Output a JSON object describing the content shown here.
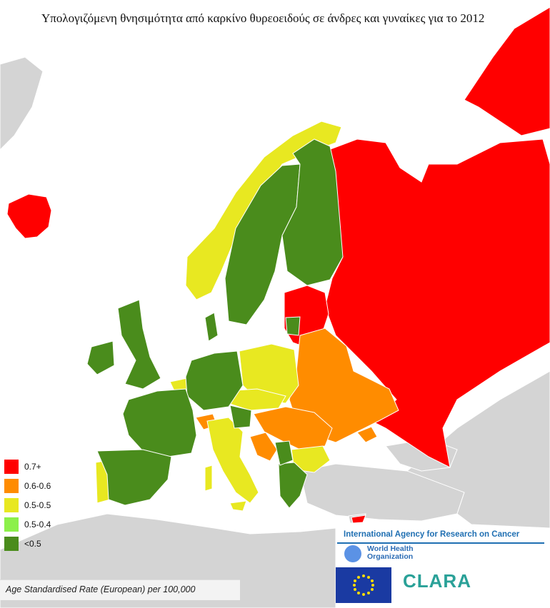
{
  "title": "Υπολογιζόμενη θνησιμότητα από καρκίνο θυρεοειδούς σε άνδρες και γυναίκες για το 2012",
  "legend": {
    "items": [
      {
        "label": "0.7+",
        "color": "#ff0000"
      },
      {
        "label": "0.6-0.6",
        "color": "#ff8c00"
      },
      {
        "label": "0.5-0.5",
        "color": "#e8e821"
      },
      {
        "label": "0.5-0.4",
        "color": "#8cf04a"
      },
      {
        "label": "<0.5",
        "color": "#4a8c1c"
      }
    ]
  },
  "rate_label": "Age Standardised Rate (European) per 100,000",
  "logos": {
    "iarc": "International Agency for Research on Cancer",
    "who_line1": "World Health",
    "who_line2": "Organization",
    "clara": "CLARA",
    "eu_flag_icon": "eu-flag-icon"
  },
  "colors": {
    "sea": "#ffffff",
    "no_data_land": "#d4d4d4",
    "border": "#ffffff"
  }
}
